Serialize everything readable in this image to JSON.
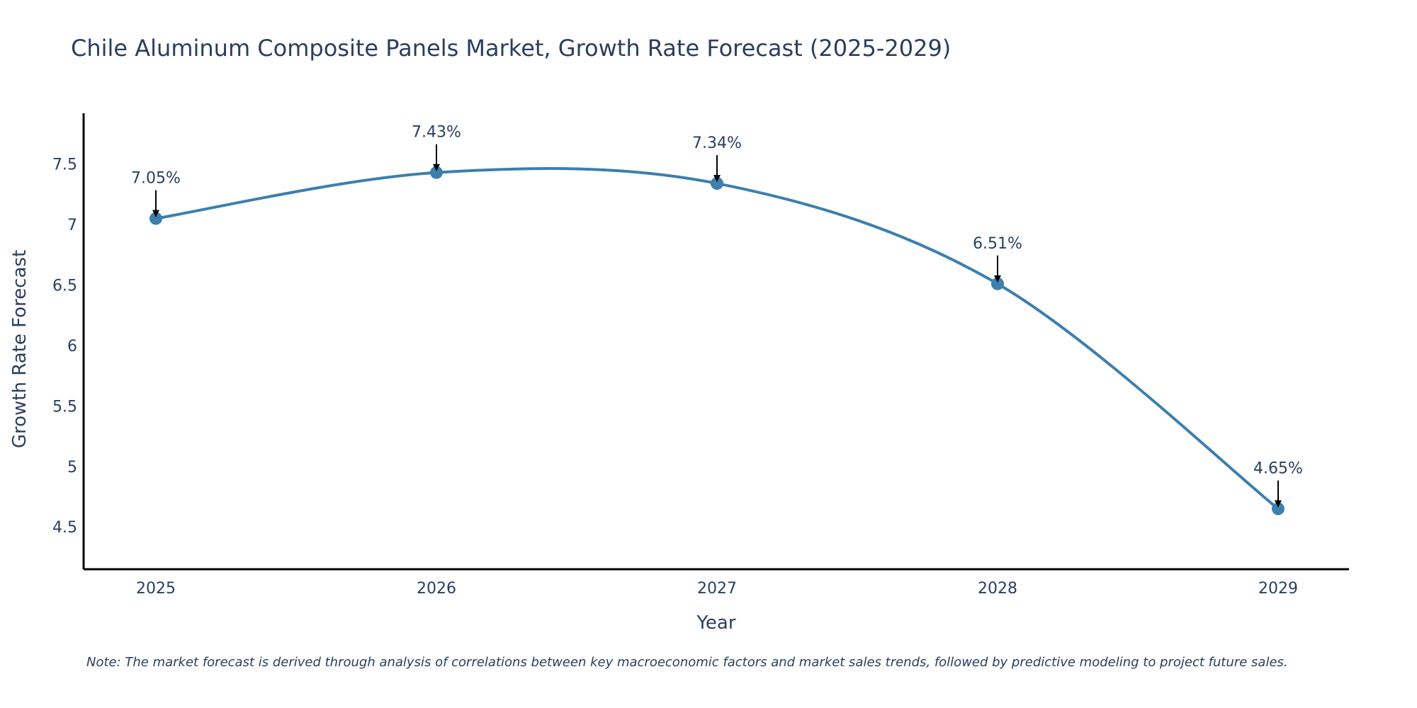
{
  "chart_data": {
    "type": "line",
    "title": "Chile Aluminum Composite Panels Market, Growth Rate Forecast (2025-2029)",
    "xlabel": "Year",
    "ylabel": "Growth Rate Forecast",
    "categories": [
      "2025",
      "2026",
      "2027",
      "2028",
      "2029"
    ],
    "series": [
      {
        "name": "Growth Rate Forecast",
        "values": [
          7.05,
          7.43,
          7.34,
          6.51,
          4.65
        ],
        "labels": [
          "7.05%",
          "7.43%",
          "7.34%",
          "6.51%",
          "4.65%"
        ]
      }
    ],
    "ylim": [
      4.15,
      7.92
    ],
    "yticks": [
      4.5,
      5,
      5.5,
      6,
      6.5,
      7,
      7.5
    ],
    "ytick_labels": [
      "4.5",
      "5",
      "5.5",
      "6",
      "6.5",
      "7",
      "7.5"
    ],
    "grid": false,
    "line_color": "#3d7fad",
    "marker_color": "#3d7fad",
    "arrow_color": "#000000",
    "note": "Note: The market forecast is derived through analysis of correlations between key macroeconomic factors and market sales trends, followed by predictive modeling to project future sales."
  }
}
